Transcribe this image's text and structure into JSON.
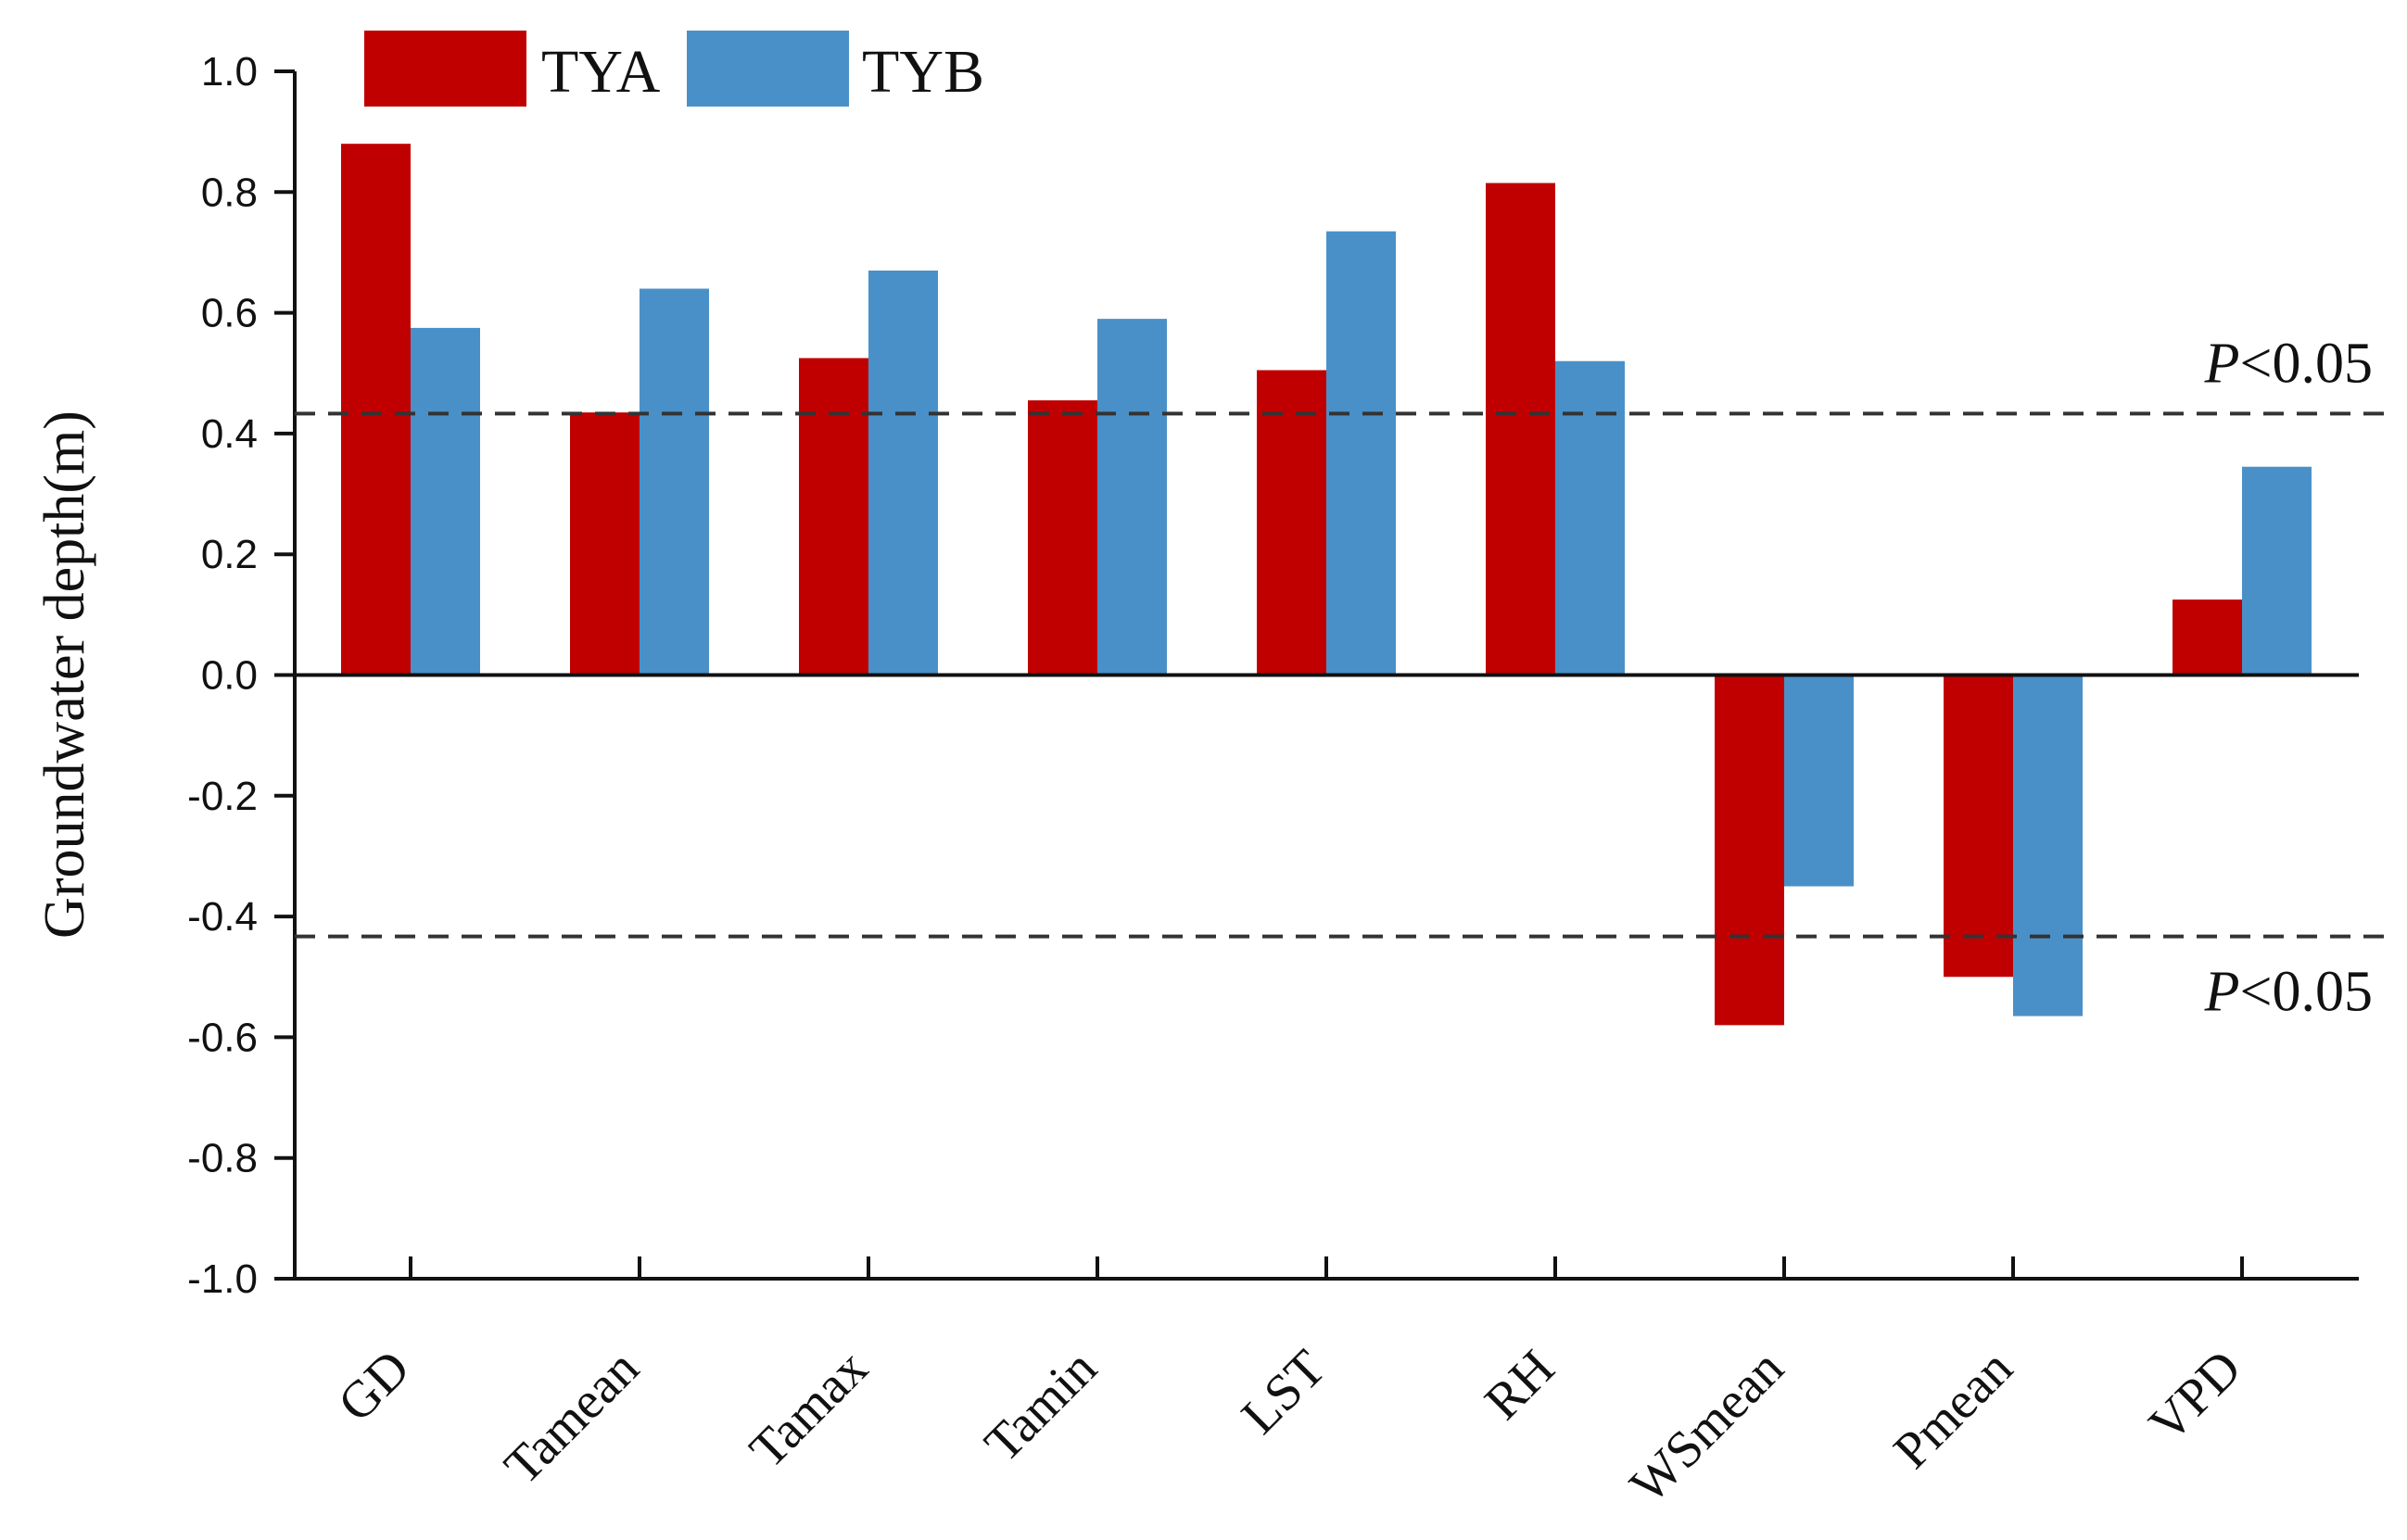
{
  "chart_data": {
    "type": "bar",
    "ylabel": "Groundwater depth(m)",
    "xlabel": "",
    "ylim": [
      -1.0,
      1.0
    ],
    "yticks": [
      "1.0",
      "0.8",
      "0.6",
      "0.4",
      "0.2",
      "0.0",
      "-0.2",
      "-0.4",
      "-0.6",
      "-0.8",
      "-1.0"
    ],
    "ytick_values": [
      1.0,
      0.8,
      0.6,
      0.4,
      0.2,
      0.0,
      -0.2,
      -0.4,
      -0.6,
      -0.8,
      -1.0
    ],
    "categories": [
      "GD",
      "Tamean",
      "Tamax",
      "Tamin",
      "LST",
      "RH",
      "WSmean",
      "Pmean",
      "VPD"
    ],
    "series": [
      {
        "name": "TYA",
        "color": "#c00000",
        "values": [
          0.88,
          0.435,
          0.525,
          0.455,
          0.505,
          0.815,
          -0.58,
          -0.5,
          0.125
        ]
      },
      {
        "name": "TYB",
        "color": "#4a90c8",
        "values": [
          0.575,
          0.64,
          0.67,
          0.59,
          0.735,
          0.52,
          -0.35,
          -0.565,
          0.345
        ]
      }
    ],
    "legend_position": "top-left",
    "grid": false,
    "reference_lines": [
      {
        "y": 0.433,
        "label_prefix": "P",
        "label_suffix": "<0.05",
        "style": "dashed"
      },
      {
        "y": -0.433,
        "label_prefix": "P",
        "label_suffix": "<0.05",
        "style": "dashed"
      }
    ]
  }
}
